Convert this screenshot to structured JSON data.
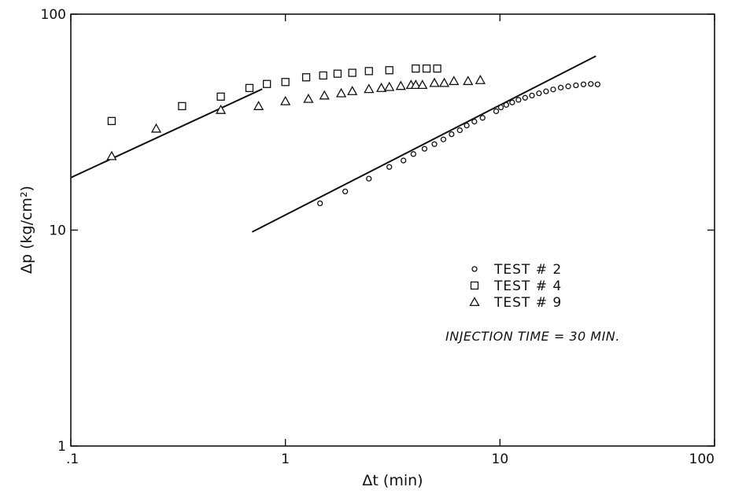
{
  "chart_data": {
    "type": "scatter",
    "title": "",
    "xlabel": "Δt (min)",
    "ylabel": "Δp (kg/cm²)",
    "x_scale": "log",
    "y_scale": "log",
    "xlim": [
      0.1,
      100
    ],
    "ylim": [
      1,
      100
    ],
    "x_tick_labels": [
      ".1",
      "1",
      "10",
      "100"
    ],
    "x_tick_values": [
      0.1,
      1,
      10,
      100
    ],
    "y_tick_labels": [
      "1",
      "10",
      "100"
    ],
    "y_tick_values": [
      1,
      10,
      100
    ],
    "grid": false,
    "legend_position": "center-right",
    "annotation": "INJECTION TIME = 30 MIN.",
    "series": [
      {
        "name": "TEST # 2",
        "marker": "circle",
        "points": [
          [
            1.45,
            13.3
          ],
          [
            1.9,
            15.1
          ],
          [
            2.45,
            17.3
          ],
          [
            3.05,
            19.6
          ],
          [
            3.55,
            21.0
          ],
          [
            3.95,
            22.5
          ],
          [
            4.45,
            23.8
          ],
          [
            4.95,
            25.0
          ],
          [
            5.45,
            26.3
          ],
          [
            5.95,
            27.8
          ],
          [
            6.5,
            29.0
          ],
          [
            7.0,
            30.5
          ],
          [
            7.6,
            31.8
          ],
          [
            8.3,
            33.1
          ],
          [
            9.6,
            35.5
          ],
          [
            10.1,
            37.0
          ],
          [
            10.7,
            38.0
          ],
          [
            11.4,
            39.0
          ],
          [
            12.2,
            40.1
          ],
          [
            13.1,
            41.0
          ],
          [
            14.1,
            42.0
          ],
          [
            15.2,
            43.0
          ],
          [
            16.4,
            43.9
          ],
          [
            17.7,
            44.8
          ],
          [
            19.2,
            45.7
          ],
          [
            20.8,
            46.3
          ],
          [
            22.6,
            46.8
          ],
          [
            24.5,
            47.3
          ],
          [
            26.5,
            47.5
          ],
          [
            28.5,
            47.3
          ]
        ]
      },
      {
        "name": "TEST # 4",
        "marker": "square",
        "points": [
          [
            0.155,
            32.0
          ],
          [
            0.33,
            37.5
          ],
          [
            0.5,
            41.5
          ],
          [
            0.68,
            45.5
          ],
          [
            0.82,
            47.5
          ],
          [
            1.0,
            48.5
          ],
          [
            1.25,
            51.0
          ],
          [
            1.5,
            52.0
          ],
          [
            1.75,
            53.0
          ],
          [
            2.05,
            53.5
          ],
          [
            2.45,
            54.5
          ],
          [
            3.05,
            55.0
          ],
          [
            4.05,
            56.0
          ],
          [
            4.55,
            56.0
          ],
          [
            5.1,
            56.0
          ]
        ]
      },
      {
        "name": "TEST # 9",
        "marker": "triangle",
        "points": [
          [
            0.155,
            22.0
          ],
          [
            0.25,
            29.5
          ],
          [
            0.5,
            36.0
          ],
          [
            0.75,
            37.5
          ],
          [
            1.0,
            39.5
          ],
          [
            1.28,
            40.5
          ],
          [
            1.52,
            42.0
          ],
          [
            1.82,
            43.0
          ],
          [
            2.05,
            44.0
          ],
          [
            2.45,
            45.0
          ],
          [
            2.8,
            45.5
          ],
          [
            3.05,
            46.0
          ],
          [
            3.45,
            46.5
          ],
          [
            3.85,
            47.0
          ],
          [
            4.05,
            47.0
          ],
          [
            4.35,
            47.0
          ],
          [
            4.95,
            48.0
          ],
          [
            5.5,
            48.0
          ],
          [
            6.1,
            49.0
          ],
          [
            7.1,
            49.0
          ],
          [
            8.1,
            49.5
          ]
        ]
      }
    ],
    "reference_lines": [
      {
        "points": [
          [
            0.1,
            17.5
          ],
          [
            0.78,
            45.0
          ]
        ]
      },
      {
        "points": [
          [
            0.7,
            9.8
          ],
          [
            28.0,
            64.0
          ]
        ]
      }
    ]
  }
}
